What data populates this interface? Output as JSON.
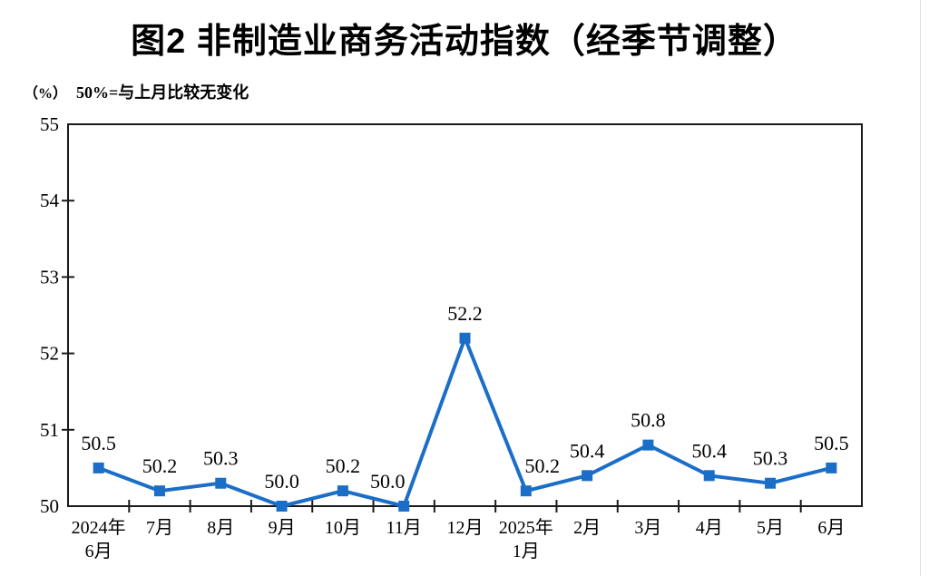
{
  "title": "图2 非制造业商务活动指数（经季节调整）",
  "unit_label": "（%）",
  "unit_note": "50%=与上月比较无变化",
  "chart_data": {
    "type": "line",
    "title": "图2 非制造业商务活动指数（经季节调整）",
    "ylabel": "（%）",
    "annotation": "50%=与上月比较无变化",
    "categories": [
      [
        "2024年",
        "6月"
      ],
      [
        "7月"
      ],
      [
        "8月"
      ],
      [
        "9月"
      ],
      [
        "10月"
      ],
      [
        "11月"
      ],
      [
        "12月"
      ],
      [
        "2025年",
        "1月"
      ],
      [
        "2月"
      ],
      [
        "3月"
      ],
      [
        "4月"
      ],
      [
        "5月"
      ],
      [
        "6月"
      ]
    ],
    "values": [
      50.5,
      50.2,
      50.3,
      50.0,
      50.2,
      50.0,
      52.2,
      50.2,
      50.4,
      50.8,
      50.4,
      50.3,
      50.5
    ],
    "data_labels": [
      "50.5",
      "50.2",
      "50.3",
      "50.0",
      "50.2",
      "50.0",
      "52.2",
      "50.2",
      "50.4",
      "50.8",
      "50.4",
      "50.3",
      "50.5"
    ],
    "label_dx": [
      0,
      0,
      0,
      0,
      0,
      -18,
      0,
      18,
      0,
      0,
      0,
      0,
      0
    ],
    "ylim": [
      50,
      55
    ],
    "ytick_step": 1,
    "ytick_labels": [
      "50",
      "51",
      "52",
      "53",
      "54",
      "55"
    ],
    "line_color": "#1B6EC8",
    "axis_color": "#1a1a1a",
    "marker": "square",
    "grid": false,
    "legend_position": "none"
  }
}
